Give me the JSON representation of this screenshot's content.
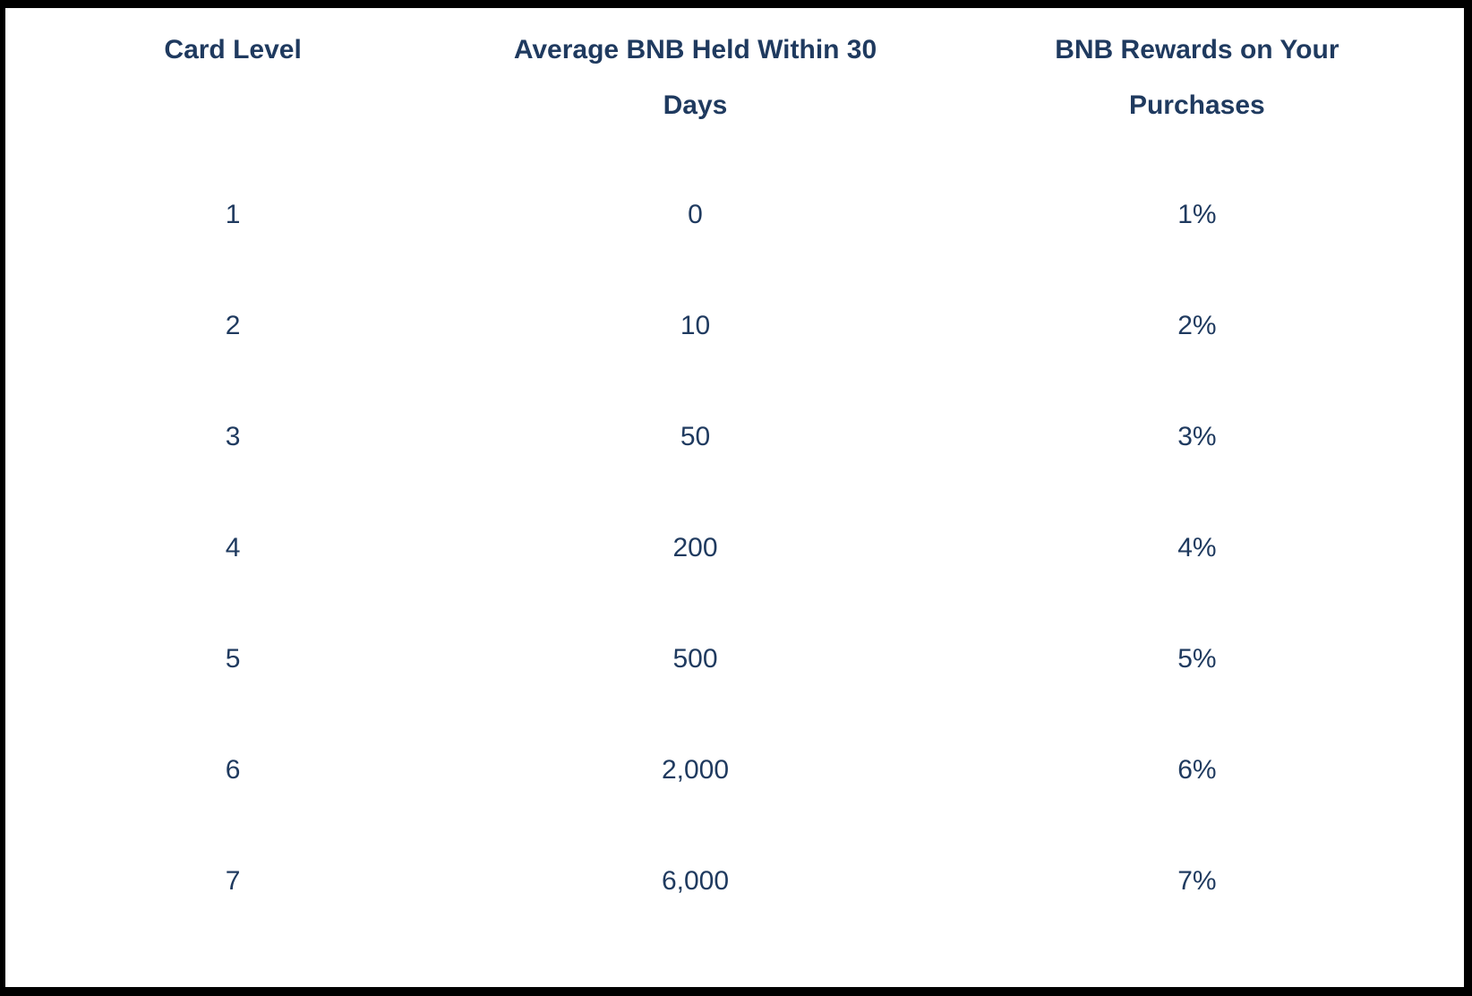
{
  "page": {
    "frame_color": "#000000",
    "panel_background": "#ffffff",
    "text_color": "#1f3a5f"
  },
  "table": {
    "columns": [
      "Card Level",
      "Average BNB Held Within 30 Days",
      "BNB Rewards on Your Purchases"
    ],
    "rows": [
      {
        "card_level": "1",
        "avg_bnb_held": "0",
        "bnb_rewards": "1%"
      },
      {
        "card_level": "2",
        "avg_bnb_held": "10",
        "bnb_rewards": "2%"
      },
      {
        "card_level": "3",
        "avg_bnb_held": "50",
        "bnb_rewards": "3%"
      },
      {
        "card_level": "4",
        "avg_bnb_held": "200",
        "bnb_rewards": "4%"
      },
      {
        "card_level": "5",
        "avg_bnb_held": "500",
        "bnb_rewards": "5%"
      },
      {
        "card_level": "6",
        "avg_bnb_held": "2,000",
        "bnb_rewards": "6%"
      },
      {
        "card_level": "7",
        "avg_bnb_held": "6,000",
        "bnb_rewards": "7%"
      }
    ]
  }
}
